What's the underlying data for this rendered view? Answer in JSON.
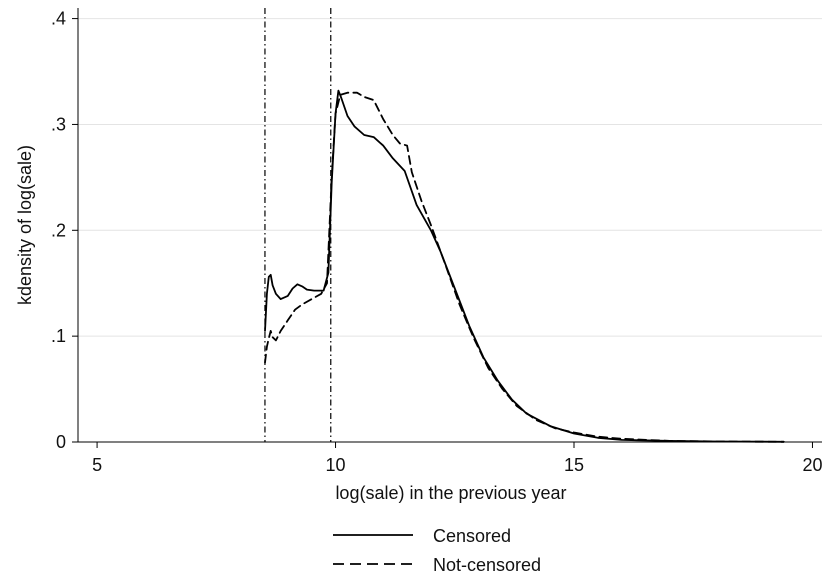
{
  "chart_data": {
    "type": "line",
    "title": "",
    "xlabel": "log(sale) in the previous year",
    "ylabel": "kdensity of log(sale)",
    "xlim": [
      4.6,
      20.2
    ],
    "ylim": [
      0,
      0.41
    ],
    "xticks": [
      {
        "value": 5,
        "label": "5"
      },
      {
        "value": 10,
        "label": "10"
      },
      {
        "value": 15,
        "label": "15"
      },
      {
        "value": 20,
        "label": "20"
      }
    ],
    "yticks": [
      {
        "value": 0,
        "label": "0"
      },
      {
        "value": 0.1,
        "label": ".1"
      },
      {
        "value": 0.2,
        "label": ".2"
      },
      {
        "value": 0.3,
        "label": ".3"
      },
      {
        "value": 0.4,
        "label": ".4"
      }
    ],
    "grid": true,
    "vlines": [
      8.52,
      9.9
    ],
    "legend_position": "bottom",
    "series": [
      {
        "name": "Censored",
        "style": "solid",
        "color": "#000000",
        "points": [
          [
            8.52,
            0.105
          ],
          [
            8.56,
            0.14
          ],
          [
            8.6,
            0.156
          ],
          [
            8.64,
            0.158
          ],
          [
            8.68,
            0.148
          ],
          [
            8.75,
            0.14
          ],
          [
            8.85,
            0.135
          ],
          [
            9.0,
            0.138
          ],
          [
            9.1,
            0.145
          ],
          [
            9.2,
            0.149
          ],
          [
            9.3,
            0.147
          ],
          [
            9.4,
            0.144
          ],
          [
            9.55,
            0.143
          ],
          [
            9.75,
            0.143
          ],
          [
            9.85,
            0.16
          ],
          [
            9.92,
            0.245
          ],
          [
            10.0,
            0.31
          ],
          [
            10.06,
            0.332
          ],
          [
            10.12,
            0.325
          ],
          [
            10.25,
            0.308
          ],
          [
            10.4,
            0.298
          ],
          [
            10.6,
            0.29
          ],
          [
            10.8,
            0.288
          ],
          [
            11.0,
            0.28
          ],
          [
            11.2,
            0.268
          ],
          [
            11.45,
            0.256
          ],
          [
            11.7,
            0.224
          ],
          [
            12.0,
            0.2
          ],
          [
            12.2,
            0.18
          ],
          [
            12.5,
            0.145
          ],
          [
            12.8,
            0.11
          ],
          [
            13.1,
            0.08
          ],
          [
            13.4,
            0.058
          ],
          [
            13.7,
            0.04
          ],
          [
            14.0,
            0.027
          ],
          [
            14.5,
            0.015
          ],
          [
            15.0,
            0.008
          ],
          [
            15.5,
            0.004
          ],
          [
            16.0,
            0.002
          ],
          [
            17.0,
            0.001
          ],
          [
            18.0,
            0.0005
          ],
          [
            19.4,
            0.0002
          ]
        ]
      },
      {
        "name": "Not-censored",
        "style": "dashed",
        "color": "#000000",
        "points": [
          [
            8.52,
            0.075
          ],
          [
            8.56,
            0.09
          ],
          [
            8.6,
            0.098
          ],
          [
            8.64,
            0.105
          ],
          [
            8.68,
            0.099
          ],
          [
            8.75,
            0.096
          ],
          [
            8.85,
            0.105
          ],
          [
            9.0,
            0.115
          ],
          [
            9.15,
            0.125
          ],
          [
            9.3,
            0.13
          ],
          [
            9.5,
            0.135
          ],
          [
            9.7,
            0.14
          ],
          [
            9.82,
            0.15
          ],
          [
            9.92,
            0.25
          ],
          [
            10.0,
            0.31
          ],
          [
            10.1,
            0.328
          ],
          [
            10.25,
            0.33
          ],
          [
            10.45,
            0.33
          ],
          [
            10.6,
            0.326
          ],
          [
            10.8,
            0.323
          ],
          [
            11.0,
            0.305
          ],
          [
            11.2,
            0.29
          ],
          [
            11.35,
            0.282
          ],
          [
            11.5,
            0.28
          ],
          [
            11.6,
            0.255
          ],
          [
            11.8,
            0.228
          ],
          [
            12.0,
            0.205
          ],
          [
            12.3,
            0.168
          ],
          [
            12.6,
            0.13
          ],
          [
            12.9,
            0.098
          ],
          [
            13.2,
            0.07
          ],
          [
            13.5,
            0.05
          ],
          [
            13.8,
            0.034
          ],
          [
            14.2,
            0.021
          ],
          [
            14.6,
            0.013
          ],
          [
            15.0,
            0.009
          ],
          [
            15.5,
            0.005
          ],
          [
            16.0,
            0.003
          ],
          [
            17.0,
            0.001
          ],
          [
            18.0,
            0.0005
          ],
          [
            19.4,
            0.0002
          ]
        ]
      }
    ]
  }
}
